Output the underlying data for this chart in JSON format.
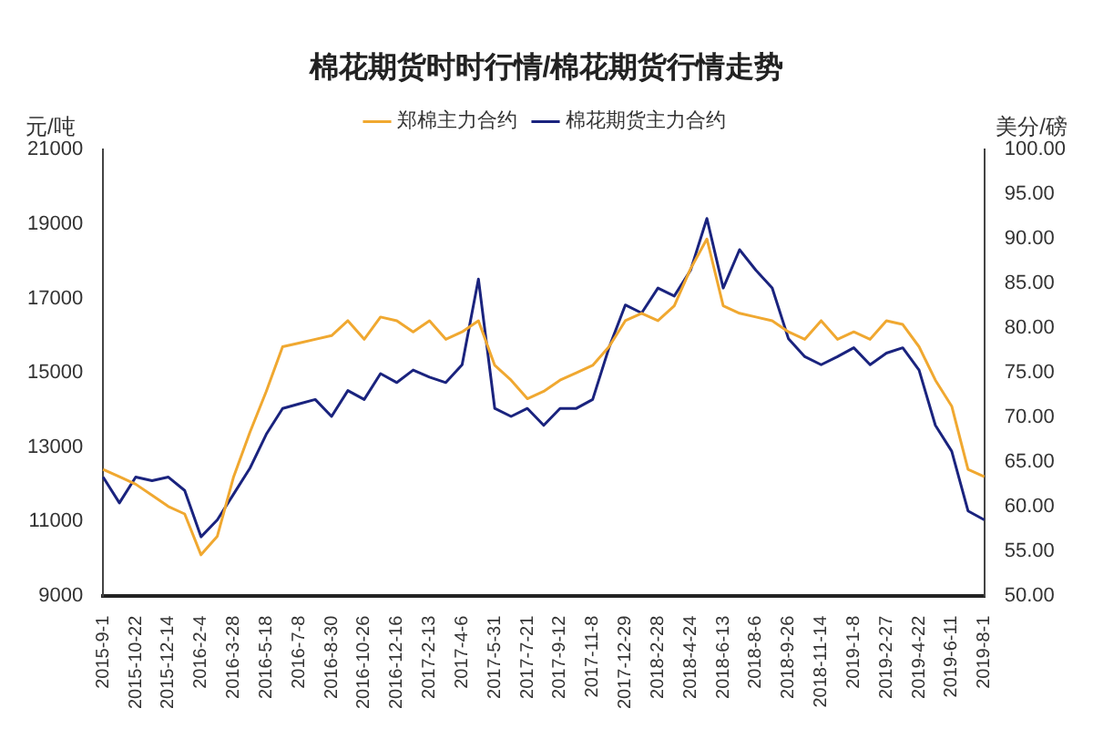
{
  "chart_data": {
    "type": "line",
    "title": "棉花期货时时行情/棉花期货行情走势",
    "ylabel": "元/吨",
    "y2label": "美分/磅",
    "categories": [
      "2015-9-1",
      null,
      "2015-10-22",
      null,
      "2015-12-14",
      null,
      "2016-2-4",
      null,
      "2016-3-28",
      null,
      "2016-5-18",
      null,
      "2016-7-8",
      null,
      "2016-8-30",
      null,
      "2016-10-26",
      null,
      "2016-12-16",
      null,
      "2017-2-13",
      null,
      "2017-4-6",
      null,
      "2017-5-31",
      null,
      "2017-7-21",
      null,
      "2017-9-12",
      null,
      "2017-11-8",
      null,
      "2017-12-29",
      null,
      "2018-2-28",
      null,
      "2018-4-24",
      null,
      "2018-6-13",
      null,
      "2018-8-6",
      null,
      "2018-9-26",
      null,
      "2018-11-14",
      null,
      "2019-1-8",
      null,
      "2019-2-27",
      null,
      "2019-4-22",
      null,
      "2019-6-11",
      null,
      "2019-8-1"
    ],
    "series": [
      {
        "name": "郑棉主力合约",
        "color": "#f0a830",
        "values": [
          12400,
          12200,
          12000,
          11700,
          11400,
          11200,
          10100,
          10600,
          12200,
          13400,
          14500,
          15700,
          15800,
          15900,
          16000,
          16400,
          15900,
          16500,
          16400,
          16100,
          16400,
          15900,
          16100,
          16400,
          15200,
          14800,
          14300,
          14500,
          14800,
          15000,
          15200,
          15700,
          16400,
          16600,
          16400,
          16800,
          17800,
          18600,
          16800,
          16600,
          16500,
          16400,
          16100,
          15900,
          16400,
          15900,
          16100,
          15900,
          16400,
          16300,
          15700,
          14800,
          14100,
          12400,
          12200
        ]
      },
      {
        "name": "棉花期货主力合约",
        "color": "#1a237e",
        "axis": "y2",
        "values": [
          63.3,
          60.4,
          63.3,
          62.9,
          63.3,
          61.8,
          56.6,
          58.5,
          61.4,
          64.3,
          68.1,
          71.0,
          71.5,
          72.0,
          70.1,
          73.0,
          72.0,
          74.9,
          73.9,
          75.3,
          74.5,
          73.9,
          75.9,
          85.5,
          71.0,
          70.1,
          71.0,
          69.1,
          71.0,
          71.0,
          72.0,
          77.8,
          82.6,
          81.7,
          84.5,
          83.6,
          86.5,
          92.3,
          84.5,
          88.8,
          86.5,
          84.5,
          78.8,
          76.8,
          75.9,
          76.8,
          77.8,
          75.9,
          77.2,
          77.8,
          75.3,
          69.1,
          66.2,
          59.5,
          58.5
        ]
      }
    ],
    "ylim": [
      9000,
      21000
    ],
    "yticks": [
      9000,
      11000,
      13000,
      15000,
      17000,
      19000,
      21000
    ],
    "y2lim": [
      50,
      100
    ],
    "y2ticks": [
      {
        "value": 50,
        "label": "50.00"
      },
      {
        "value": 55,
        "label": "55.00"
      },
      {
        "value": 60,
        "label": "60.00"
      },
      {
        "value": 65,
        "label": "65.00"
      },
      {
        "value": 70,
        "label": "70.00"
      },
      {
        "value": 75,
        "label": "75.00"
      },
      {
        "value": 80,
        "label": "80.00"
      },
      {
        "value": 85,
        "label": "85.00"
      },
      {
        "value": 90,
        "label": "90.00"
      },
      {
        "value": 95,
        "label": "95.00"
      },
      {
        "value": 100,
        "label": "100.00"
      }
    ],
    "legend": "top",
    "grid": false,
    "marker": "none",
    "line_style": "solid"
  }
}
